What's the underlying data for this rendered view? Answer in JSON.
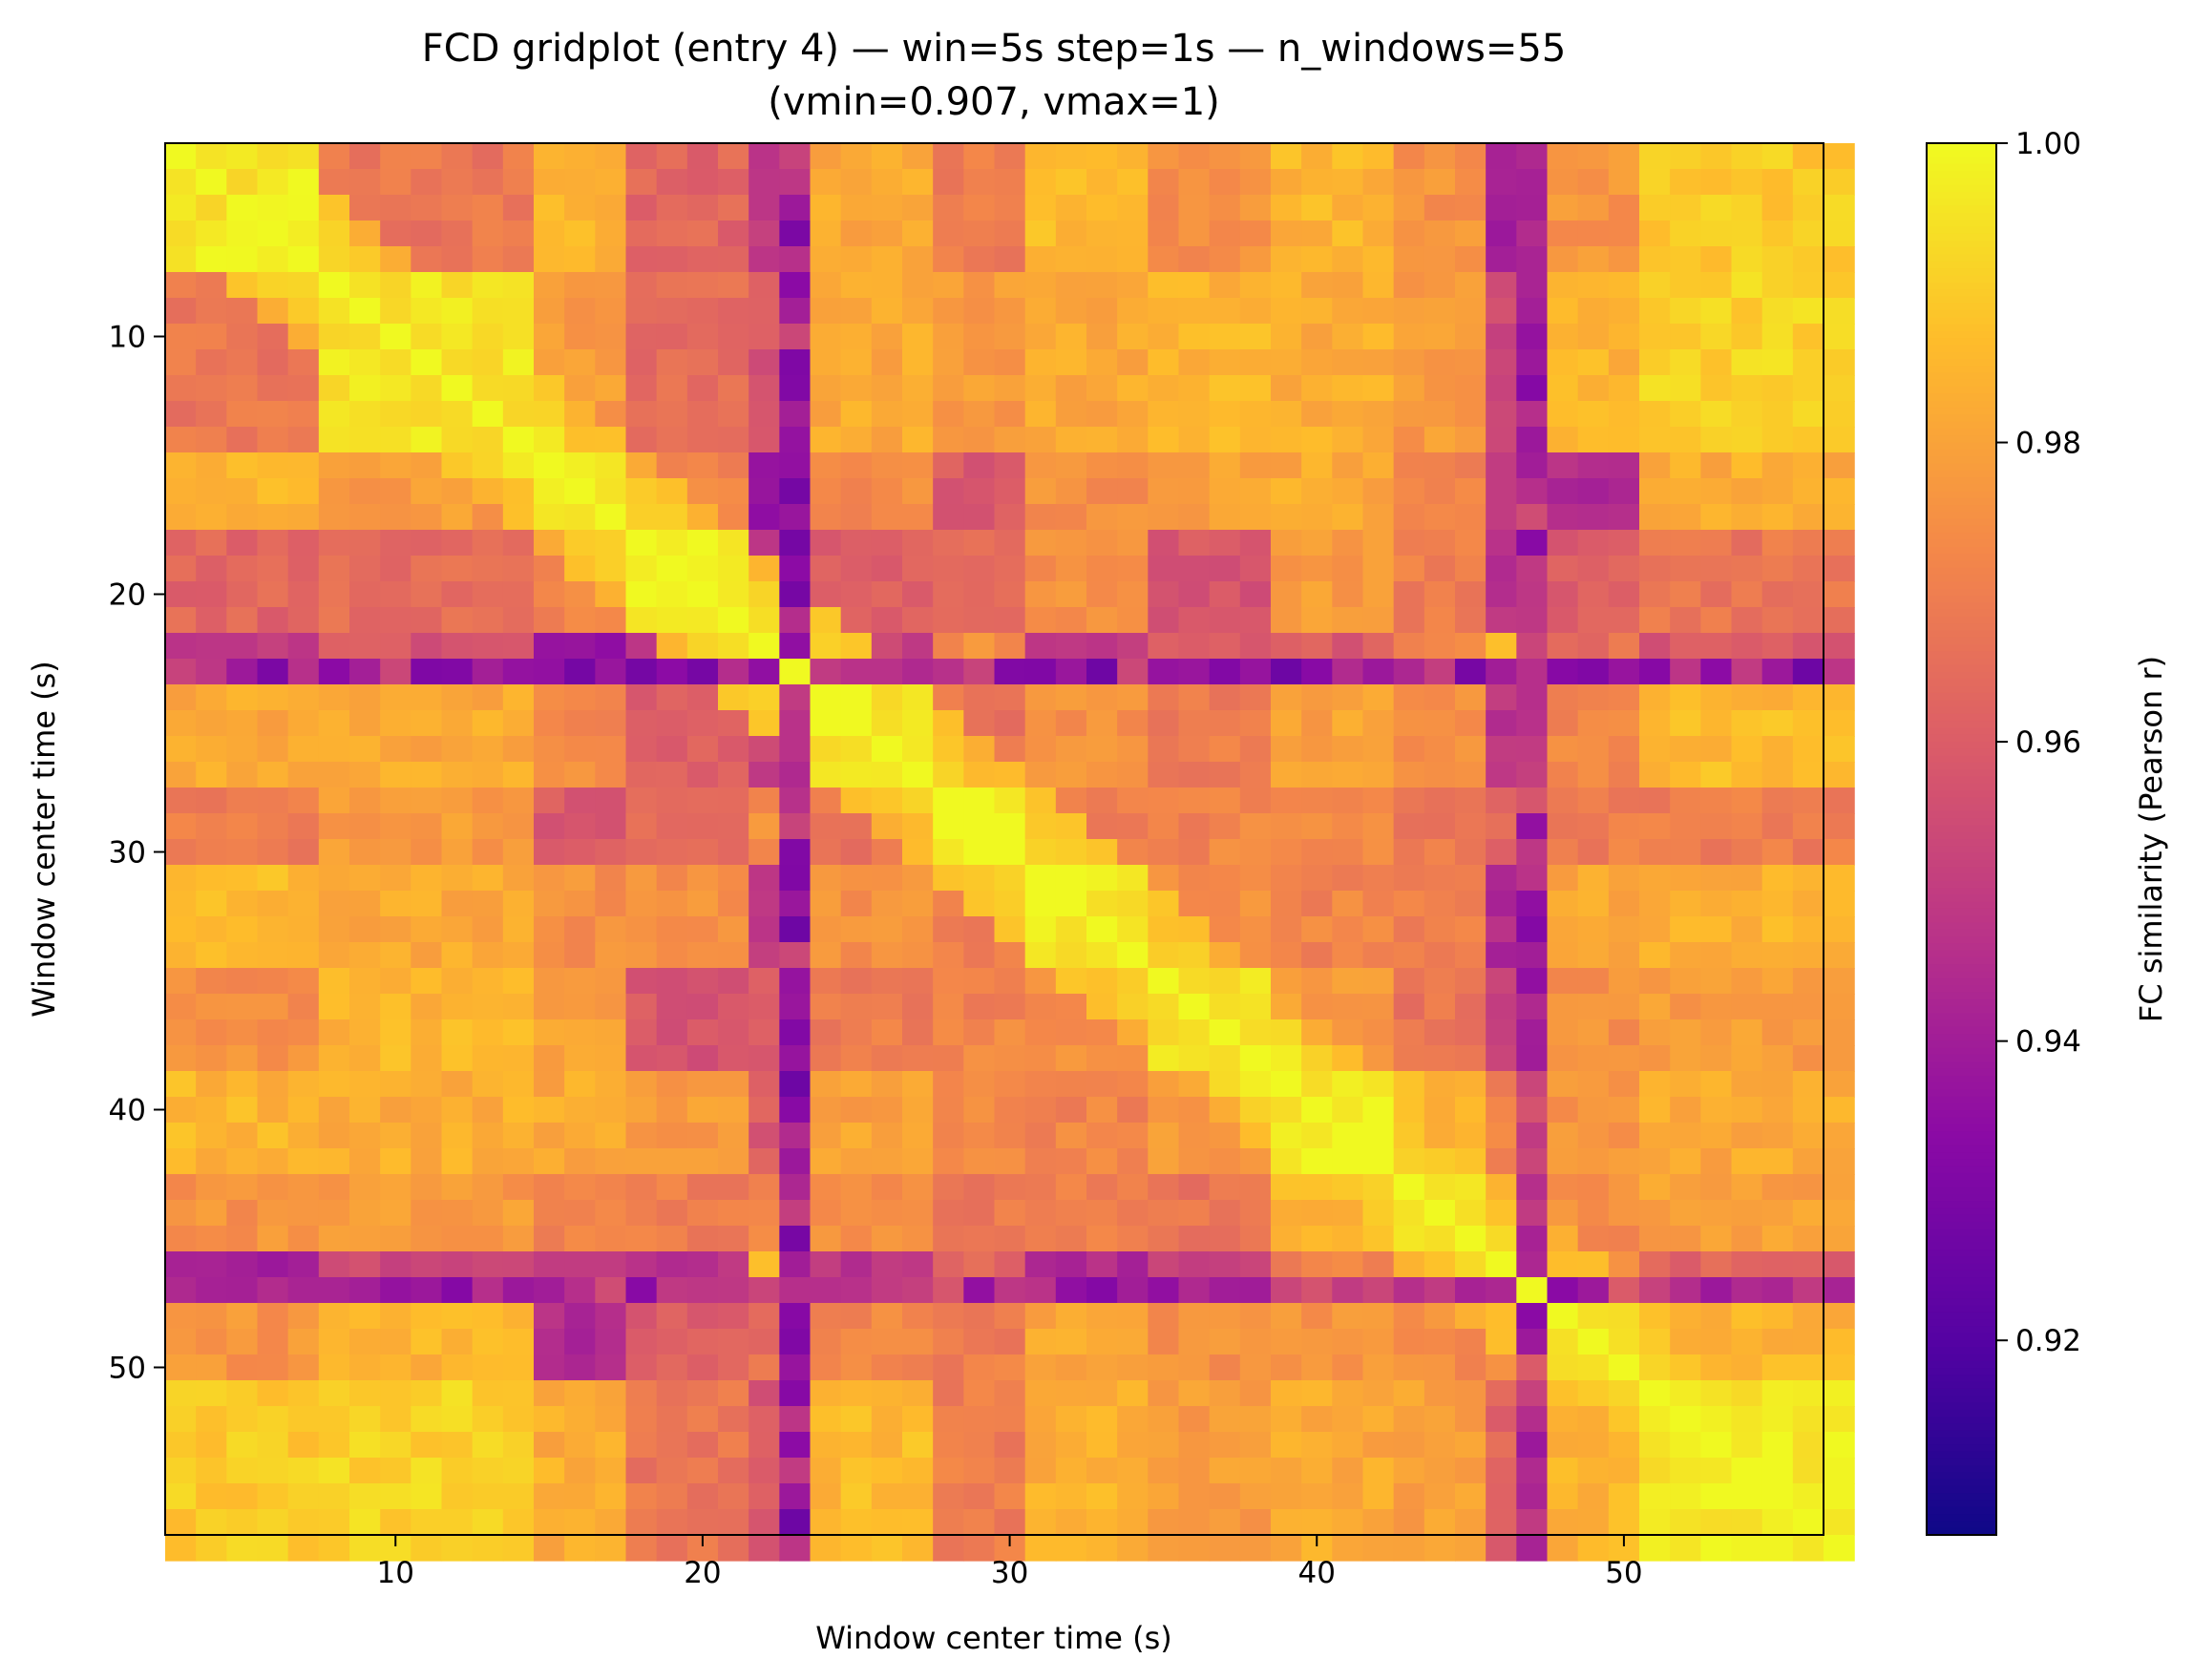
{
  "chart_data": {
    "type": "heatmap",
    "title": "FCD gridplot (entry 4) — win=5s step=1s — n_windows=55",
    "subtitle": "(vmin=0.907, vmax=1)",
    "xlabel": "Window center time (s)",
    "ylabel": "Window center time (s)",
    "colorbar_label": "FC similarity (Pearson r)",
    "colormap": "plasma",
    "vmin": 0.907,
    "vmax": 1.0,
    "n_windows": 55,
    "window_center_first": 3,
    "window_center_last": 57,
    "xlim": [
      2.5,
      56.5
    ],
    "ylim": [
      2.5,
      56.5
    ],
    "y_inverted": true,
    "x_ticks": [
      "10",
      "20",
      "30",
      "40",
      "50"
    ],
    "y_ticks": [
      "10",
      "20",
      "30",
      "40",
      "50"
    ],
    "colorbar_ticks": [
      "0.92",
      "0.94",
      "0.96",
      "0.98",
      "1.00"
    ],
    "grid": false,
    "block_boundaries": [
      3,
      8,
      15,
      18,
      22,
      24,
      28,
      31,
      35,
      39,
      43,
      46,
      48,
      51,
      56
    ],
    "block_similarity": [
      [
        0.996,
        0.968,
        0.985,
        0.963,
        0.95,
        0.982,
        0.97,
        0.987,
        0.975,
        0.985,
        0.976,
        0.942,
        0.976,
        0.99
      ],
      [
        0.968,
        0.996,
        0.978,
        0.965,
        0.958,
        0.982,
        0.978,
        0.982,
        0.985,
        0.983,
        0.978,
        0.955,
        0.985,
        0.992
      ],
      [
        0.985,
        0.978,
        0.997,
        0.972,
        0.935,
        0.974,
        0.96,
        0.975,
        0.98,
        0.982,
        0.972,
        0.952,
        0.945,
        0.983
      ],
      [
        0.963,
        0.965,
        0.972,
        0.997,
        0.95,
        0.962,
        0.966,
        0.976,
        0.958,
        0.978,
        0.97,
        0.947,
        0.96,
        0.968
      ],
      [
        0.95,
        0.958,
        0.935,
        0.95,
        0.997,
        0.952,
        0.975,
        0.95,
        0.96,
        0.96,
        0.972,
        0.985,
        0.966,
        0.958
      ],
      [
        0.982,
        0.982,
        0.974,
        0.962,
        0.952,
        0.996,
        0.968,
        0.975,
        0.97,
        0.98,
        0.975,
        0.948,
        0.972,
        0.986
      ],
      [
        0.97,
        0.978,
        0.96,
        0.966,
        0.975,
        0.968,
        0.997,
        0.97,
        0.972,
        0.975,
        0.968,
        0.962,
        0.97,
        0.97
      ],
      [
        0.987,
        0.982,
        0.975,
        0.976,
        0.95,
        0.975,
        0.97,
        0.997,
        0.976,
        0.972,
        0.97,
        0.945,
        0.982,
        0.984
      ],
      [
        0.975,
        0.985,
        0.98,
        0.958,
        0.96,
        0.97,
        0.972,
        0.976,
        0.996,
        0.978,
        0.968,
        0.95,
        0.975,
        0.978
      ],
      [
        0.985,
        0.983,
        0.982,
        0.978,
        0.96,
        0.98,
        0.975,
        0.972,
        0.978,
        0.997,
        0.985,
        0.972,
        0.976,
        0.982
      ],
      [
        0.976,
        0.978,
        0.972,
        0.97,
        0.972,
        0.975,
        0.968,
        0.97,
        0.968,
        0.985,
        0.997,
        0.968,
        0.974,
        0.98
      ],
      [
        0.942,
        0.955,
        0.952,
        0.947,
        0.985,
        0.948,
        0.962,
        0.945,
        0.95,
        0.972,
        0.968,
        0.998,
        0.975,
        0.962
      ],
      [
        0.976,
        0.985,
        0.945,
        0.96,
        0.966,
        0.972,
        0.97,
        0.982,
        0.975,
        0.976,
        0.974,
        0.975,
        0.996,
        0.985
      ],
      [
        0.99,
        0.992,
        0.983,
        0.968,
        0.958,
        0.986,
        0.97,
        0.984,
        0.978,
        0.982,
        0.98,
        0.962,
        0.985,
        0.997
      ]
    ],
    "dip_windows": [
      {
        "center": 23,
        "similarity": 0.93
      },
      {
        "center": 47,
        "similarity": 0.936
      }
    ]
  }
}
